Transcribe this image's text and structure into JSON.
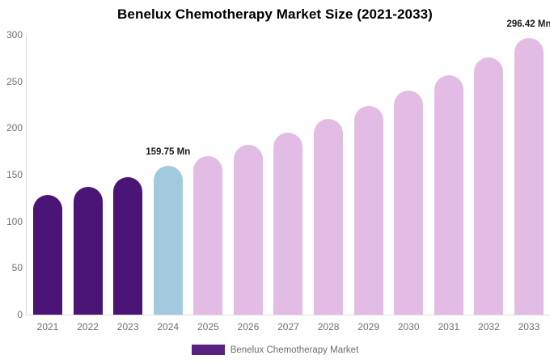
{
  "chart_data": {
    "type": "bar",
    "title": "Benelux Chemotherapy Market Size (2021-2033)",
    "categories": [
      "2021",
      "2022",
      "2023",
      "2024",
      "2025",
      "2026",
      "2027",
      "2028",
      "2029",
      "2030",
      "2031",
      "2032",
      "2033"
    ],
    "series": [
      {
        "name": "Benelux Chemotherapy Market",
        "values": [
          128,
          137,
          147.5,
          159.75,
          170,
          182,
          195,
          209.5,
          224,
          240,
          257,
          275.5,
          296.42
        ]
      }
    ],
    "unit": "Mn",
    "xlabel": "",
    "ylabel": "",
    "ylim": [
      0,
      300
    ],
    "yticks": [
      0,
      50,
      100,
      150,
      200,
      250,
      300
    ],
    "grid": false,
    "legend_position": "bottom",
    "bar_colors": [
      "#4A1576",
      "#4A1576",
      "#4A1576",
      "#A2C9DD",
      "#E3BCE5",
      "#E3BCE5",
      "#E3BCE5",
      "#E3BCE5",
      "#E3BCE5",
      "#E3BCE5",
      "#E3BCE5",
      "#E3BCE5",
      "#E3BCE5"
    ],
    "annotations": [
      {
        "category": "2024",
        "text": "159.75 Mn"
      },
      {
        "category": "2033",
        "text": "296.42 Mn"
      }
    ]
  },
  "legend": {
    "label": "Benelux Chemotherapy Market",
    "swatch_color": "#5A2185"
  },
  "colors": {
    "historical_bar": "#4A1576",
    "base_year_bar": "#A2C9DD",
    "forecast_bar": "#E3BCE5",
    "axis_line": "#D9D9D9",
    "tick_text": "#707070",
    "title_text": "#000000",
    "annotation_text": "#1A1A1A"
  }
}
